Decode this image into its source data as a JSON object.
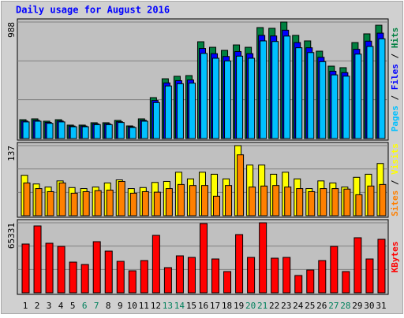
{
  "legend_separator": " / ",
  "chart_data": [
    {
      "type": "bar",
      "title": "Daily usage for August 2016",
      "ylim": [
        0,
        988
      ],
      "yticks": [
        988
      ],
      "grid": true,
      "series": [
        {
          "name": "Hits",
          "color": "#008040",
          "values": [
            160,
            167,
            147,
            160,
            114,
            114,
            134,
            134,
            154,
            107,
            167,
            347,
            507,
            528,
            534,
            821,
            774,
            748,
            794,
            774,
            941,
            935,
            988,
            875,
            828,
            741,
            614,
            601,
            814,
            888,
            961
          ]
        },
        {
          "name": "Files",
          "color": "#0000ff",
          "values": [
            149,
            155,
            137,
            149,
            106,
            106,
            125,
            125,
            143,
            100,
            155,
            323,
            472,
            491,
            497,
            764,
            720,
            696,
            738,
            720,
            875,
            870,
            919,
            814,
            770,
            689,
            571,
            559,
            757,
            826,
            894
          ]
        },
        {
          "name": "Pages",
          "color": "#00c0ff",
          "values": [
            141,
            147,
            129,
            141,
            100,
            100,
            118,
            118,
            136,
            94,
            147,
            305,
            446,
            465,
            470,
            722,
            681,
            658,
            699,
            681,
            828,
            823,
            869,
            770,
            729,
            652,
            540,
            529,
            716,
            781,
            846
          ]
        }
      ]
    },
    {
      "type": "bar",
      "ylim": [
        0,
        137
      ],
      "yticks": [
        137
      ],
      "grid": true,
      "series": [
        {
          "name": "Visits",
          "color": "#ffff00",
          "values": [
            79,
            62,
            56,
            68,
            55,
            53,
            56,
            64,
            70,
            53,
            55,
            65,
            67,
            85,
            72,
            85,
            81,
            72,
            137,
            99,
            99,
            81,
            85,
            72,
            53,
            68,
            64,
            56,
            75,
            81,
            102
          ]
        },
        {
          "name": "Sites",
          "color": "#ff8000",
          "values": [
            64,
            53,
            47,
            64,
            44,
            47,
            49,
            50,
            67,
            44,
            47,
            46,
            53,
            61,
            59,
            59,
            38,
            59,
            119,
            56,
            58,
            59,
            56,
            53,
            47,
            53,
            53,
            52,
            41,
            58,
            61
          ]
        }
      ]
    },
    {
      "type": "bar",
      "ylim": [
        0,
        65331
      ],
      "yticks": [
        65331
      ],
      "grid": true,
      "categories": [
        "1",
        "2",
        "3",
        "4",
        "5",
        "6",
        "7",
        "8",
        "9",
        "10",
        "11",
        "12",
        "13",
        "14",
        "15",
        "16",
        "17",
        "18",
        "19",
        "20",
        "21",
        "22",
        "23",
        "24",
        "25",
        "26",
        "27",
        "28",
        "29",
        "30",
        "31"
      ],
      "category_colors": [
        "#000000",
        "#000000",
        "#000000",
        "#000000",
        "#000000",
        "#00805c",
        "#00805c",
        "#000000",
        "#000000",
        "#000000",
        "#000000",
        "#000000",
        "#00805c",
        "#00805c",
        "#000000",
        "#000000",
        "#000000",
        "#000000",
        "#000000",
        "#00805c",
        "#00805c",
        "#000000",
        "#000000",
        "#000000",
        "#000000",
        "#000000",
        "#00805c",
        "#00805c",
        "#000000",
        "#000000",
        "#000000"
      ],
      "series": [
        {
          "name": "KBytes",
          "color": "#ff0000",
          "values": [
            45508,
            62390,
            46242,
            43306,
            28626,
            26424,
            47710,
            38902,
            29360,
            20552,
            30094,
            53582,
            23488,
            34498,
            33030,
            64592,
            31562,
            19818,
            54316,
            33030,
            65331,
            32296,
            33030,
            16146,
            21286,
            30094,
            43306,
            19818,
            51380,
            31562,
            49912
          ]
        }
      ]
    }
  ]
}
